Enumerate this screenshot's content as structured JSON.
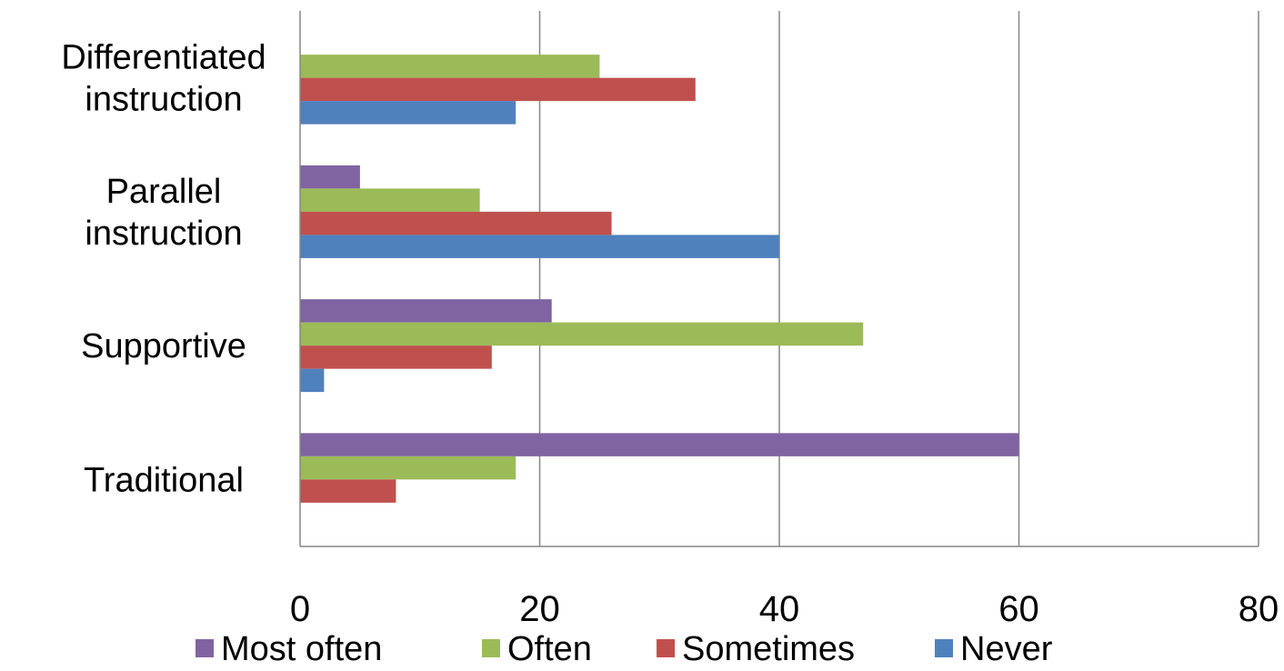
{
  "chart_data": {
    "type": "bar",
    "orientation": "horizontal",
    "categories": [
      [
        "Differentiated",
        "instruction"
      ],
      [
        "Parallel",
        "instruction"
      ],
      [
        "Supportive"
      ],
      [
        "Traditional"
      ]
    ],
    "series": [
      {
        "name": "Most often",
        "color": "#8064a2",
        "values": [
          0,
          5,
          21,
          60
        ]
      },
      {
        "name": "Often",
        "color": "#9bbb59",
        "values": [
          25,
          15,
          47,
          18
        ]
      },
      {
        "name": "Sometimes",
        "color": "#c0504d",
        "values": [
          33,
          26,
          16,
          8
        ]
      },
      {
        "name": "Never",
        "color": "#4f81bd",
        "values": [
          18,
          40,
          2,
          0
        ]
      }
    ],
    "xlim": [
      0,
      80
    ],
    "xticks": [
      "0",
      "20",
      "40",
      "60",
      "80"
    ],
    "grid": true,
    "legend_position": "bottom",
    "title": "",
    "xlabel": "",
    "ylabel": ""
  }
}
